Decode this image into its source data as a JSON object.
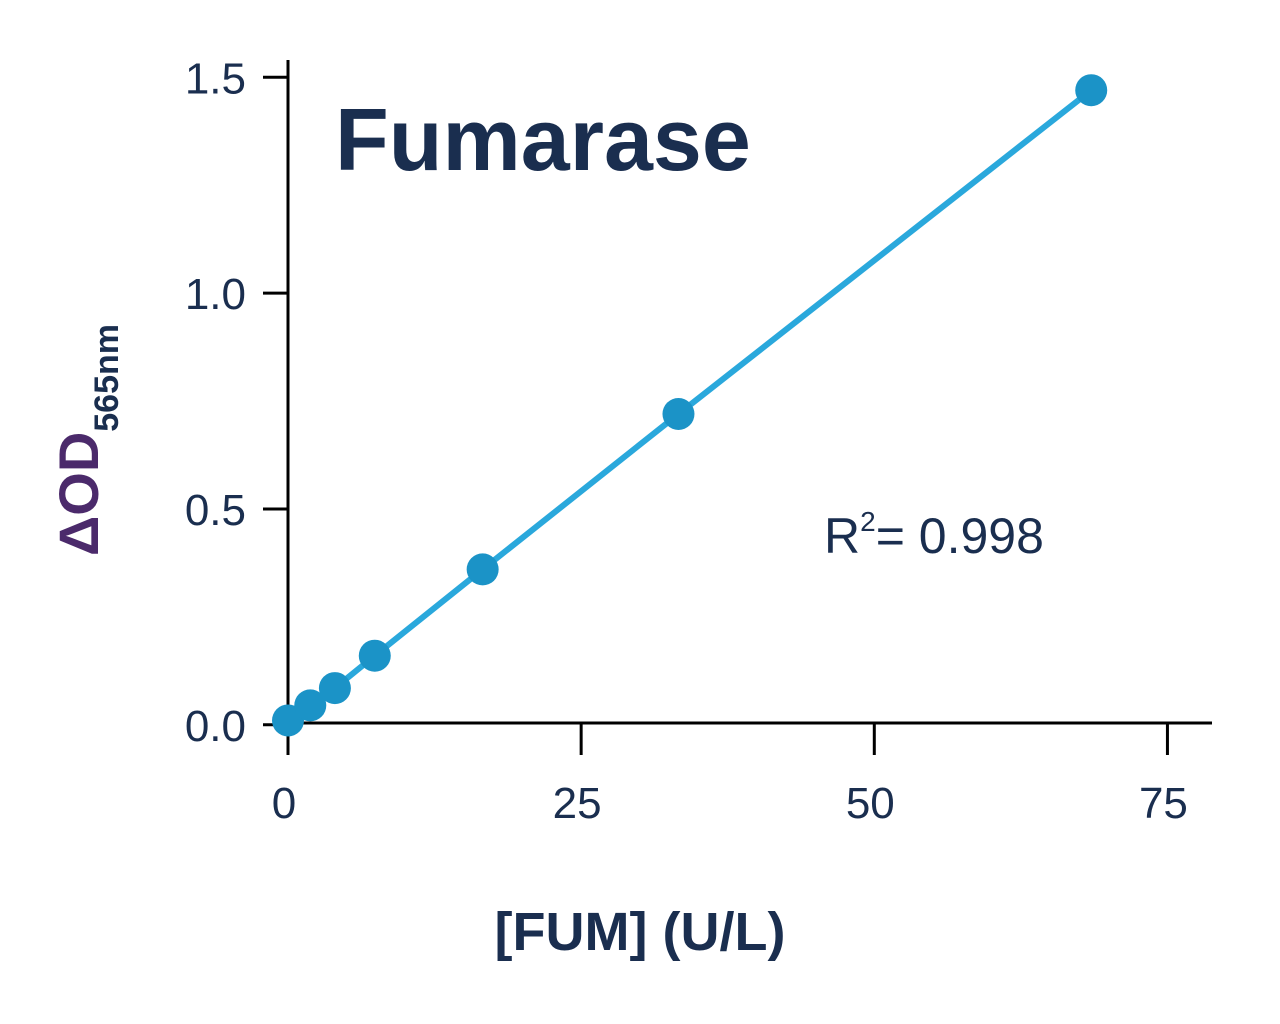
{
  "chart_data": {
    "type": "scatter-line",
    "title": "Fumarase",
    "y_label": "ΔOD",
    "y_label_sub": "565nm",
    "x_label": "[FUM] (U/L)",
    "annotation": {
      "base": "R",
      "sup": "2",
      "text": "= 0.998"
    },
    "x": [
      0,
      1.9,
      4.0,
      7.4,
      16.6,
      33.3,
      68.5
    ],
    "values": [
      0.01,
      0.045,
      0.085,
      0.16,
      0.36,
      0.72,
      1.47
    ],
    "color": "#1b93c7",
    "line_color": "#2aa8dc",
    "xlim": [
      0,
      78.8
    ],
    "xticks": [
      0,
      25,
      50,
      75
    ],
    "ylim": [
      -0.07,
      1.54
    ],
    "yticks": [
      {
        "value": 0,
        "label": "0.0"
      },
      0.5,
      {
        "value": 1,
        "label": "1.0"
      },
      1.5
    ],
    "grid": false
  }
}
